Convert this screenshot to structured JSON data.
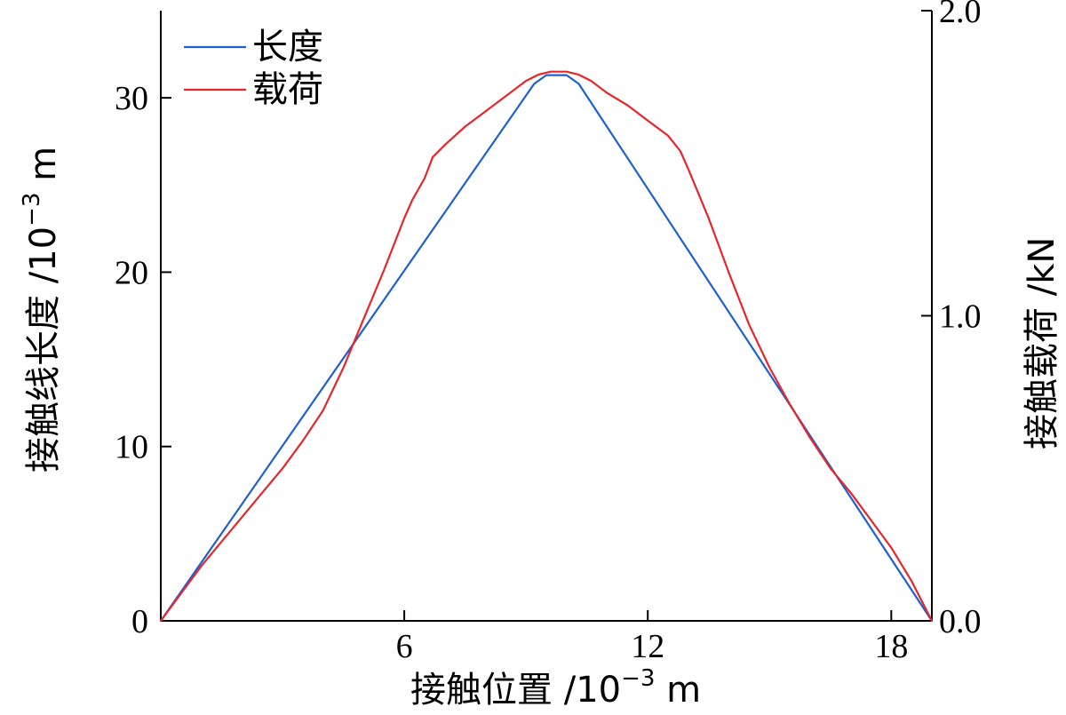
{
  "chart_data": {
    "type": "line",
    "xlabel": "接触位置 /10",
    "xlabel_exp": "−3",
    "xlabel_unit": " m",
    "ylabel_left": "接触线长度 /10",
    "ylabel_left_exp": "−3",
    "ylabel_left_unit": " m",
    "ylabel_right": "接触载荷 /kN",
    "xlim": [
      0,
      19
    ],
    "ylim_left": [
      0,
      35
    ],
    "ylim_right": [
      0,
      2.0
    ],
    "x_ticks": [
      6,
      12,
      18
    ],
    "x_tick_labels": [
      "6",
      "12",
      "18"
    ],
    "y_left_ticks": [
      0,
      10,
      20,
      30
    ],
    "y_left_tick_labels": [
      "0",
      "10",
      "20",
      "30"
    ],
    "y_right_ticks": [
      0,
      1.0,
      2.0
    ],
    "y_right_tick_labels": [
      "0.0",
      "1.0",
      "2.0"
    ],
    "legend_position": "top-left",
    "grid": false,
    "series": [
      {
        "name": "长度",
        "axis": "left",
        "color": "#1f5fd6",
        "x": [
          0,
          9.2,
          9.5,
          10.0,
          10.3,
          19
        ],
        "y": [
          0,
          30.8,
          31.3,
          31.3,
          30.8,
          0
        ]
      },
      {
        "name": "载荷",
        "axis": "right",
        "color": "#e8262a",
        "x": [
          0,
          0.5,
          1.0,
          1.5,
          2.0,
          2.5,
          3.0,
          3.5,
          4.0,
          4.5,
          5.0,
          5.5,
          6.0,
          6.2,
          6.5,
          6.7,
          7.0,
          7.5,
          8.0,
          8.5,
          9.0,
          9.3,
          9.6,
          10.0,
          10.3,
          10.6,
          11.0,
          11.5,
          12.0,
          12.5,
          12.8,
          13.0,
          13.5,
          14.0,
          14.5,
          15.0,
          15.5,
          16.0,
          16.5,
          17.0,
          17.5,
          18.0,
          18.5,
          19.0
        ],
        "y": [
          0.0,
          0.09,
          0.18,
          0.26,
          0.34,
          0.42,
          0.5,
          0.59,
          0.69,
          0.83,
          0.99,
          1.15,
          1.32,
          1.38,
          1.45,
          1.52,
          1.56,
          1.62,
          1.67,
          1.72,
          1.77,
          1.79,
          1.8,
          1.8,
          1.79,
          1.77,
          1.73,
          1.69,
          1.64,
          1.59,
          1.54,
          1.48,
          1.32,
          1.14,
          0.97,
          0.83,
          0.71,
          0.6,
          0.5,
          0.42,
          0.33,
          0.24,
          0.13,
          0.0
        ]
      }
    ]
  }
}
